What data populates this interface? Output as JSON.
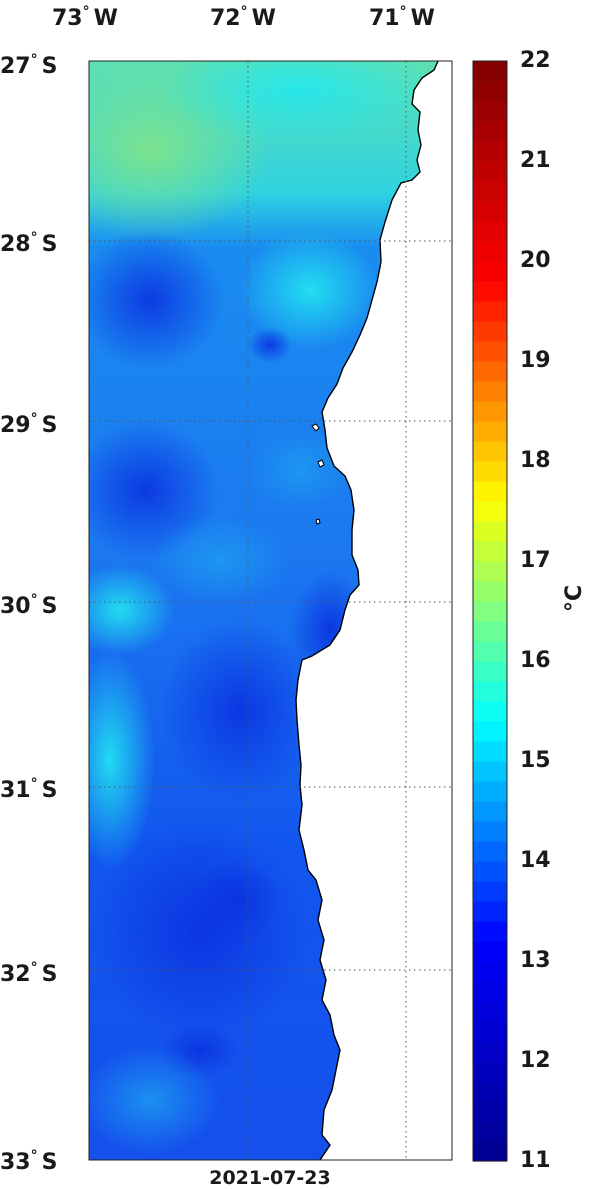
{
  "map": {
    "date_label": "2021-07-23",
    "lon_labels": [
      {
        "deg": "73",
        "hemi": "W"
      },
      {
        "deg": "72",
        "hemi": "W"
      },
      {
        "deg": "71",
        "hemi": "W"
      }
    ],
    "lat_labels": [
      {
        "deg": "27",
        "hemi": "S"
      },
      {
        "deg": "28",
        "hemi": "S"
      },
      {
        "deg": "29",
        "hemi": "S"
      },
      {
        "deg": "30",
        "hemi": "S"
      },
      {
        "deg": "31",
        "hemi": "S"
      },
      {
        "deg": "32",
        "hemi": "S"
      },
      {
        "deg": "33",
        "hemi": "S"
      }
    ],
    "variable": "sea surface temperature",
    "colormap": "jet",
    "gridlines": "dotted",
    "land_color": "#ffffff",
    "coast_color": "#000000"
  },
  "colorbar": {
    "unit_label": "°C",
    "min": 11,
    "max": 22,
    "ticks": [
      "22",
      "21",
      "20",
      "19",
      "18",
      "17",
      "16",
      "15",
      "14",
      "13",
      "12",
      "11"
    ],
    "stops": [
      "#00008f",
      "#0000ff",
      "#00ffff",
      "#ffff00",
      "#ff0000",
      "#800000"
    ]
  }
}
